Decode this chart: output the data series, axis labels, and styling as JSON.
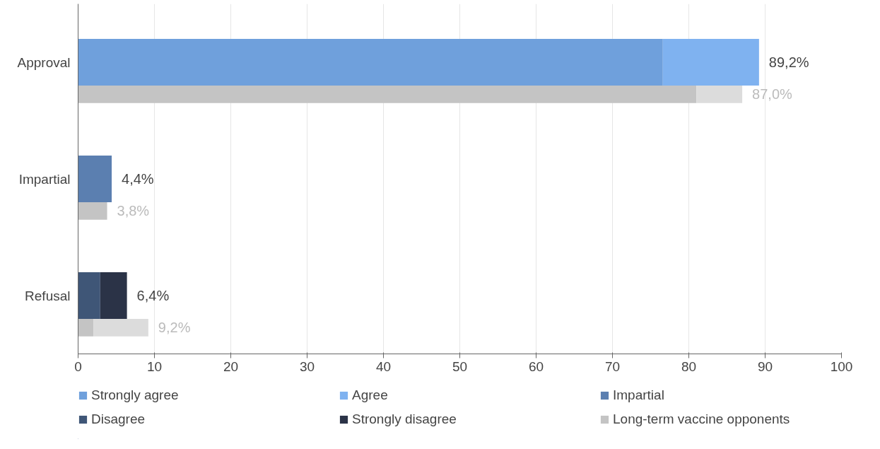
{
  "chart_data": {
    "type": "bar",
    "orientation": "horizontal",
    "stacked": true,
    "categories": [
      "Approval",
      null,
      "Impartial",
      null,
      "Refusal",
      null
    ],
    "series": [
      {
        "name": "Strongly agree",
        "color": "#6fa0dc",
        "values": [
          76.6,
          null,
          null,
          null,
          null,
          null
        ]
      },
      {
        "name": "Agree",
        "color": "#7fb2f0",
        "values": [
          12.6,
          null,
          null,
          null,
          null,
          null
        ]
      },
      {
        "name": "Impartial",
        "color": "#5b7fb0",
        "values": [
          null,
          null,
          4.4,
          null,
          null,
          null
        ]
      },
      {
        "name": "Disagree",
        "color": "#3f5677",
        "values": [
          null,
          null,
          null,
          null,
          2.9,
          null
        ]
      },
      {
        "name": "Strongly disagree",
        "color": "#2b3347",
        "values": [
          null,
          null,
          null,
          null,
          3.5,
          null
        ]
      },
      {
        "name": "Long-term vaccine opponents",
        "color": "#c4c4c4",
        "values": [
          null,
          81.0,
          null,
          3.8,
          null,
          2.0
        ]
      },
      {
        "color": "#dcdcdc",
        "values": [
          null,
          6.0,
          null,
          null,
          null,
          7.2
        ]
      }
    ],
    "totals": [
      "89,2%",
      "87,0%",
      "4,4%",
      "3,8%",
      "6,4%",
      "9,2%"
    ],
    "xlim": [
      0,
      100
    ],
    "xticks": [
      0,
      10,
      20,
      30,
      40,
      50,
      60,
      70,
      80,
      90,
      100
    ],
    "grid": "x",
    "legend": "bottom"
  }
}
